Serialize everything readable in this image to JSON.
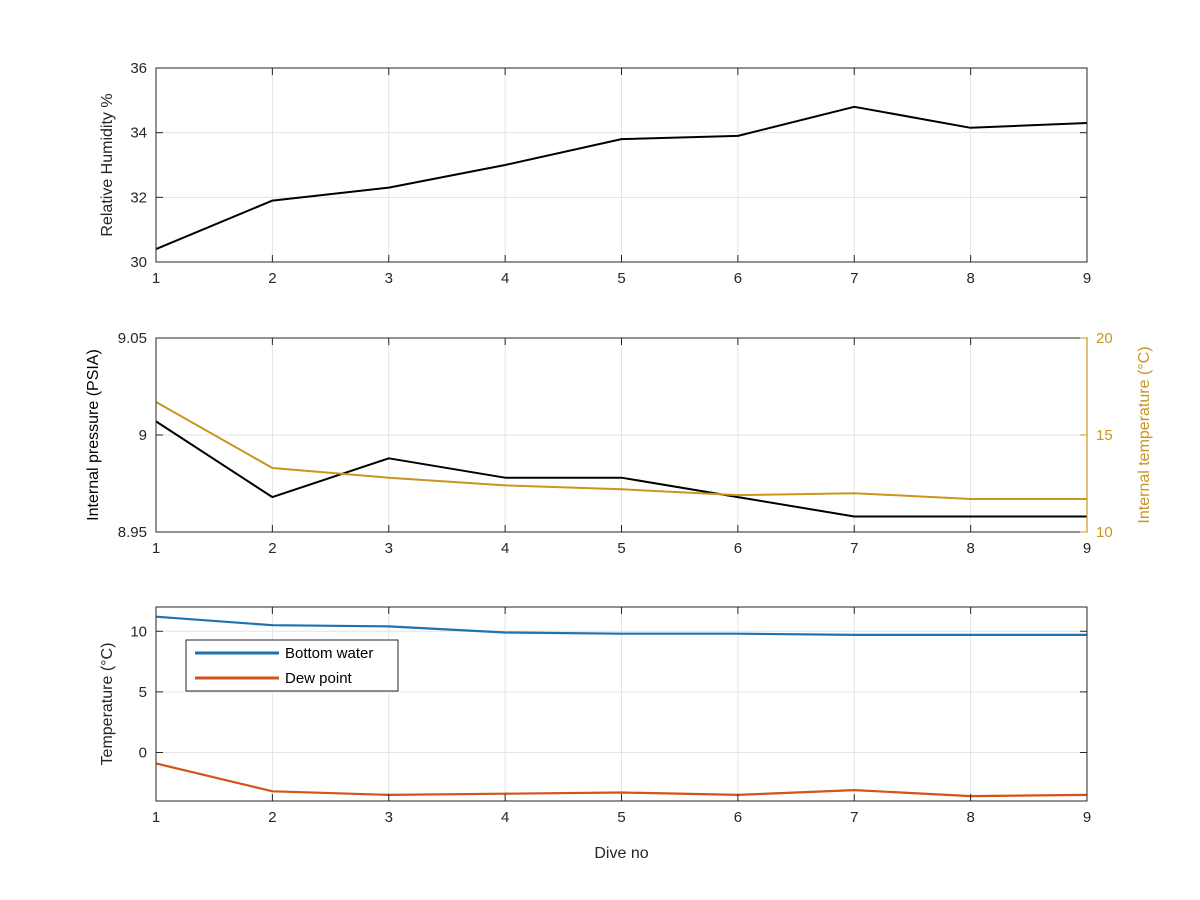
{
  "chart_data": [
    {
      "type": "line",
      "title": "",
      "xlabel": "",
      "ylabel": "Relative Humidity %",
      "xlim": [
        1,
        9
      ],
      "ylim": [
        30,
        36
      ],
      "xticks": [
        "1",
        "2",
        "3",
        "4",
        "5",
        "6",
        "7",
        "8",
        "9"
      ],
      "yticks": [
        "30",
        "32",
        "34",
        "36"
      ],
      "grid": true,
      "x": [
        1,
        2,
        3,
        4,
        5,
        6,
        7,
        8,
        9
      ],
      "series": [
        {
          "values": [
            30.4,
            31.9,
            32.3,
            33.0,
            33.8,
            33.9,
            34.8,
            34.15,
            34.3
          ],
          "color": "#000000"
        }
      ]
    },
    {
      "type": "line",
      "title": "",
      "xlabel": "",
      "ylabel": "Internal pressure (PSIA)",
      "ylabel_right": "Internal temperature (°C)",
      "xlim": [
        1,
        9
      ],
      "ylim": [
        8.95,
        9.05
      ],
      "ylim_right": [
        10,
        20
      ],
      "xticks": [
        "1",
        "2",
        "3",
        "4",
        "5",
        "6",
        "7",
        "8",
        "9"
      ],
      "yticks": [
        "8.95",
        "9",
        "9.05"
      ],
      "yticks_right": [
        "10",
        "15",
        "20"
      ],
      "grid": true,
      "x": [
        1,
        2,
        3,
        4,
        5,
        6,
        7,
        8,
        9
      ],
      "series": [
        {
          "axis": "left",
          "values": [
            9.007,
            8.968,
            8.988,
            8.978,
            8.978,
            8.968,
            8.958,
            8.958,
            8.958
          ],
          "color": "#000000"
        },
        {
          "axis": "right",
          "values": [
            16.7,
            13.3,
            12.8,
            12.4,
            12.2,
            11.9,
            12.0,
            11.7,
            11.7
          ],
          "color": "#c8961e"
        }
      ]
    },
    {
      "type": "line",
      "title": "",
      "xlabel": "Dive no",
      "ylabel": "Temperature (°C)",
      "xlim": [
        1,
        9
      ],
      "ylim": [
        -4,
        12
      ],
      "xticks": [
        "1",
        "2",
        "3",
        "4",
        "5",
        "6",
        "7",
        "8",
        "9"
      ],
      "yticks": [
        "0",
        "5",
        "10"
      ],
      "grid": true,
      "legend_position": "top-left",
      "x": [
        1,
        2,
        3,
        4,
        5,
        6,
        7,
        8,
        9
      ],
      "series": [
        {
          "name": "Bottom water",
          "values": [
            11.2,
            10.5,
            10.4,
            9.9,
            9.8,
            9.8,
            9.7,
            9.7,
            9.7
          ],
          "color": "#1f72b0"
        },
        {
          "name": "Dew point",
          "values": [
            -0.9,
            -3.2,
            -3.5,
            -3.4,
            -3.3,
            -3.5,
            -3.1,
            -3.6,
            -3.5
          ],
          "color": "#d2541a"
        }
      ]
    }
  ]
}
